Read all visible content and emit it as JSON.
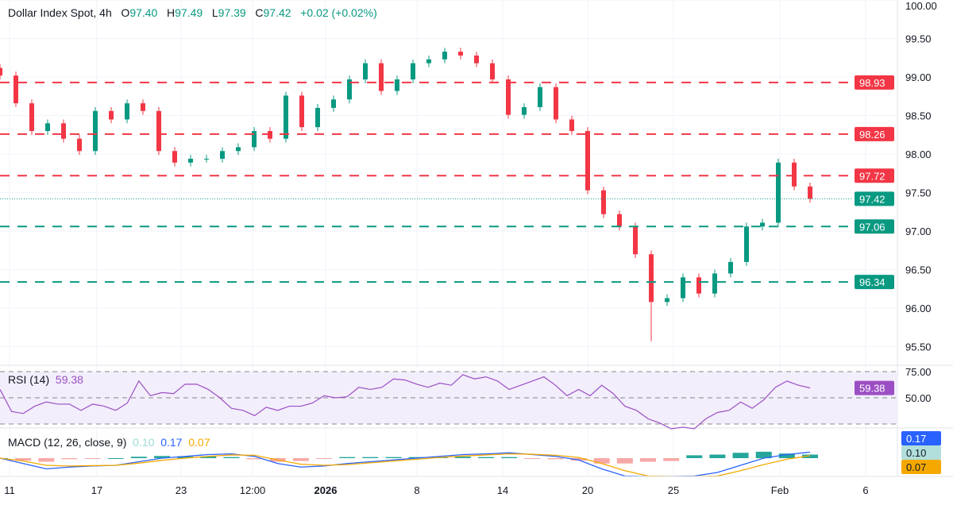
{
  "header": {
    "symbol": "Dollar Index Spot, 4h",
    "o_label": "O",
    "o": "97.40",
    "h_label": "H",
    "h": "97.49",
    "l_label": "L",
    "l": "97.39",
    "c_label": "C",
    "c": "97.42",
    "change": "+0.02 (+0.02%)"
  },
  "colors": {
    "up": "#089981",
    "down": "#f23645",
    "rsi": "#9c4fc4",
    "macd": "#2962ff",
    "signal": "#f5a800",
    "hist_pos": "#26a69a",
    "hist_neg": "#f23645"
  },
  "chart_data": [
    {
      "type": "candlestick",
      "title": "Dollar Index Spot, 4h",
      "ylim": [
        95.3,
        100.0
      ],
      "yticks": [
        "100.00",
        "99.50",
        "99.00",
        "98.50",
        "98.00",
        "97.50",
        "97.00",
        "96.50",
        "96.00",
        "95.50"
      ],
      "yticks_values": [
        100,
        99.5,
        99,
        98.5,
        98,
        97.5,
        97,
        96.5,
        96,
        95.5
      ],
      "xticks": [
        "11",
        "17",
        "23",
        "12:00",
        "2026",
        "8",
        "14",
        "20",
        "25",
        "Feb",
        "6"
      ],
      "closes": [
        99.02,
        98.66,
        98.3,
        98.4,
        98.2,
        98.04,
        98.56,
        98.45,
        98.66,
        98.56,
        98.04,
        97.89,
        97.94,
        97.94,
        98.04,
        98.09,
        98.3,
        98.2,
        98.76,
        98.35,
        98.6,
        98.71,
        98.97,
        99.18,
        98.82,
        98.97,
        99.18,
        99.23,
        99.33,
        99.28,
        99.18,
        98.97,
        98.51,
        98.61,
        98.87,
        98.45,
        98.3,
        97.53,
        97.22,
        97.06,
        96.7,
        96.08,
        96.13,
        96.4,
        96.19,
        96.45,
        96.6,
        97.06,
        97.11,
        97.89,
        97.58,
        97.42
      ],
      "period_low": 95.57,
      "levels": [
        {
          "value": "98.93",
          "color": "#f23645"
        },
        {
          "value": "98.26",
          "color": "#f23645"
        },
        {
          "value": "97.72",
          "color": "#f23645"
        },
        {
          "value": "97.06",
          "color": "#089981"
        },
        {
          "value": "96.34",
          "color": "#089981"
        }
      ],
      "last_price": "97.42"
    },
    {
      "type": "line",
      "title": "RSI (14)",
      "value": "59.38",
      "ylim": [
        20,
        80
      ],
      "bands": [
        75,
        50,
        25
      ],
      "yticks": [
        "75.00",
        "50.00"
      ],
      "values": [
        58,
        37,
        35,
        42,
        46,
        44,
        44,
        38,
        44,
        42,
        38,
        45,
        66,
        52,
        55,
        54,
        63,
        63,
        58,
        50,
        40,
        38,
        33,
        41,
        38,
        42,
        42,
        45,
        52,
        50,
        51,
        60,
        58,
        60,
        68,
        67,
        63,
        60,
        64,
        62,
        72,
        68,
        70,
        66,
        58,
        62,
        66,
        70,
        62,
        52,
        58,
        52,
        62,
        54,
        42,
        38,
        30,
        26,
        20,
        22,
        18,
        30,
        36,
        38,
        46,
        40,
        48,
        60,
        66,
        62,
        59.38
      ]
    },
    {
      "type": "line",
      "title": "MACD (12, 26, close, 9)",
      "hist_value": "0.10",
      "macd_value": "0.17",
      "signal_value": "0.07",
      "macd": [
        0,
        -0.15,
        -0.3,
        -0.25,
        -0.22,
        -0.2,
        -0.1,
        0,
        0.05,
        0.1,
        0.12,
        0.05,
        -0.15,
        -0.25,
        -0.22,
        -0.15,
        -0.1,
        -0.05,
        0,
        0.05,
        0.1,
        0.12,
        0.15,
        0.1,
        0.05,
        -0.05,
        -0.3,
        -0.5,
        -0.6,
        -0.7,
        -0.5,
        -0.4,
        -0.2,
        0,
        0.1,
        0.17
      ],
      "signal": [
        0,
        -0.08,
        -0.2,
        -0.22,
        -0.21,
        -0.2,
        -0.14,
        -0.06,
        0,
        0.05,
        0.09,
        0.08,
        -0.05,
        -0.17,
        -0.2,
        -0.18,
        -0.13,
        -0.08,
        -0.03,
        0.02,
        0.06,
        0.09,
        0.12,
        0.11,
        0.08,
        0.02,
        -0.15,
        -0.35,
        -0.5,
        -0.62,
        -0.58,
        -0.5,
        -0.35,
        -0.18,
        -0.03,
        0.07
      ]
    }
  ]
}
